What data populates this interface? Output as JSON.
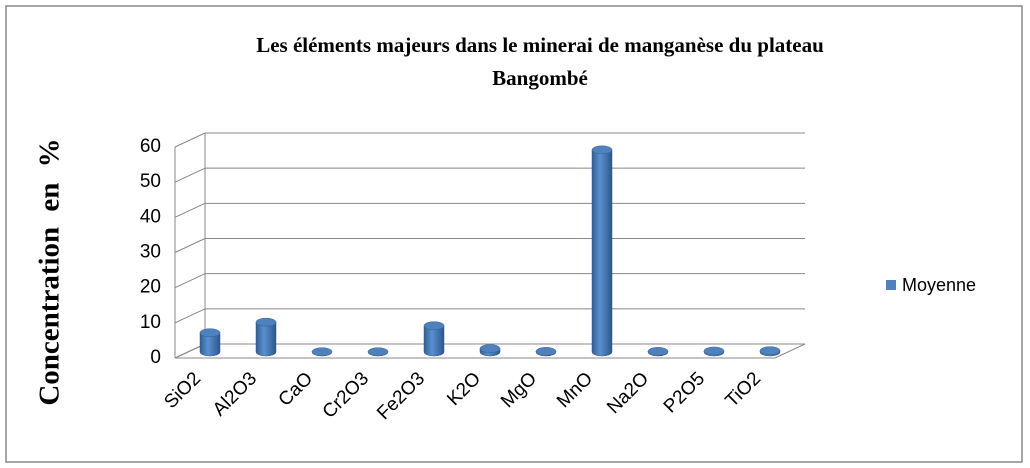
{
  "chart_data": {
    "type": "bar3d",
    "title": [
      "Les éléments majeurs dans le minerai de manganèse du plateau",
      "Bangombé"
    ],
    "y_label": "Concentration en %",
    "categories": [
      "SiO2",
      "Al2O3",
      "CaO",
      "Cr2O3",
      "Fe2O3",
      "K2O",
      "MgO",
      "MnO",
      "Na2O",
      "P2O5",
      "TiO2"
    ],
    "series": [
      {
        "name": "Moyenne",
        "color": "#4f81bd",
        "values": [
          5.5,
          8.5,
          0.1,
          0.1,
          7.5,
          1,
          0.2,
          57.5,
          0.2,
          0.3,
          0.4
        ]
      }
    ],
    "ylim": [
      0,
      60
    ],
    "yticks": [
      0,
      10,
      20,
      30,
      40,
      50,
      60
    ],
    "grid": true,
    "legend": "right"
  }
}
